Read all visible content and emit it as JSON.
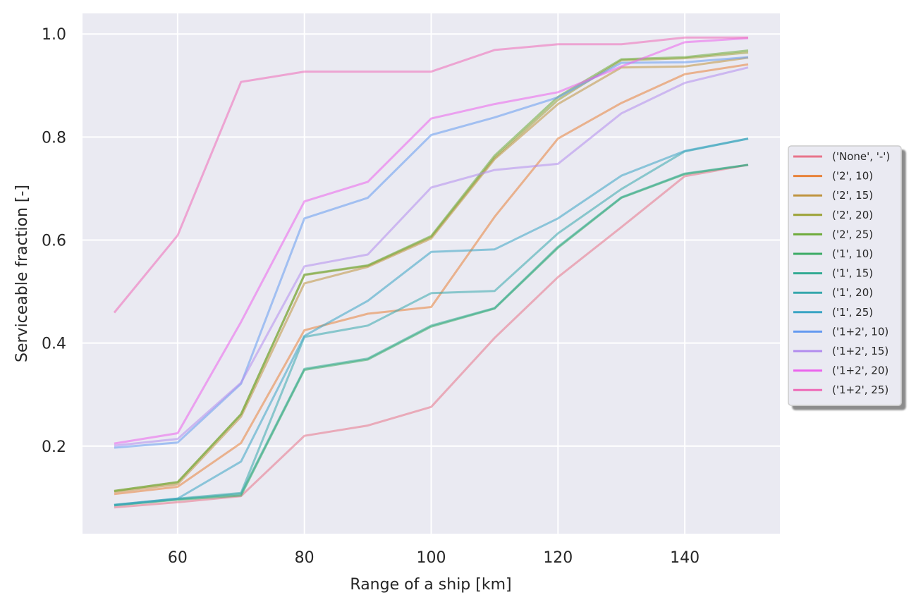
{
  "chart_data": {
    "type": "line",
    "title": "",
    "xlabel": "Range of a ship [km]",
    "ylabel": "Serviceable fraction [-]",
    "xlim": [
      45,
      155
    ],
    "ylim": [
      0.03,
      1.04
    ],
    "xticks": [
      60,
      80,
      100,
      120,
      140
    ],
    "yticks": [
      0.2,
      0.4,
      0.6,
      0.8,
      1.0
    ],
    "x": [
      50,
      60,
      70,
      80,
      90,
      100,
      110,
      120,
      130,
      140,
      150
    ],
    "grid": true,
    "legend_position": "right",
    "series": [
      {
        "name": "('None', '-')",
        "color": "#e8748b",
        "values": [
          0.081,
          0.091,
          0.103,
          0.22,
          0.24,
          0.276,
          0.41,
          0.528,
          0.625,
          0.724,
          0.746
        ]
      },
      {
        "name": "('2', 10)",
        "color": "#e8823a",
        "values": [
          0.107,
          0.121,
          0.206,
          0.425,
          0.457,
          0.47,
          0.645,
          0.797,
          0.866,
          0.922,
          0.941
        ]
      },
      {
        "name": "('2', 15)",
        "color": "#bf9440",
        "values": [
          0.111,
          0.126,
          0.257,
          0.516,
          0.548,
          0.603,
          0.757,
          0.864,
          0.935,
          0.937,
          0.954
        ]
      },
      {
        "name": "('2', 20)",
        "color": "#9ba134",
        "values": [
          0.113,
          0.13,
          0.262,
          0.532,
          0.55,
          0.606,
          0.76,
          0.872,
          0.949,
          0.953,
          0.964
        ]
      },
      {
        "name": "('2', 25)",
        "color": "#6eab3a",
        "values": [
          0.113,
          0.13,
          0.262,
          0.533,
          0.551,
          0.608,
          0.764,
          0.878,
          0.951,
          0.955,
          0.968
        ]
      },
      {
        "name": "('1', 10)",
        "color": "#3bab65",
        "values": [
          0.085,
          0.096,
          0.104,
          0.348,
          0.368,
          0.432,
          0.467,
          0.585,
          0.682,
          0.728,
          0.746
        ]
      },
      {
        "name": "('1', 15)",
        "color": "#34ab94",
        "values": [
          0.085,
          0.097,
          0.107,
          0.35,
          0.37,
          0.434,
          0.468,
          0.587,
          0.683,
          0.729,
          0.746
        ]
      },
      {
        "name": "('1', 20)",
        "color": "#37a7ad",
        "values": [
          0.086,
          0.098,
          0.109,
          0.412,
          0.434,
          0.497,
          0.501,
          0.613,
          0.699,
          0.772,
          0.797
        ]
      },
      {
        "name": "('1', 25)",
        "color": "#3aa4c4",
        "values": [
          0.086,
          0.098,
          0.17,
          0.414,
          0.482,
          0.577,
          0.582,
          0.642,
          0.725,
          0.773,
          0.797
        ]
      },
      {
        "name": "('1+2', 10)",
        "color": "#649af0",
        "values": [
          0.197,
          0.207,
          0.321,
          0.642,
          0.682,
          0.804,
          0.838,
          0.877,
          0.944,
          0.945,
          0.955
        ]
      },
      {
        "name": "('1+2', 15)",
        "color": "#b28cee",
        "values": [
          0.201,
          0.214,
          0.323,
          0.549,
          0.572,
          0.702,
          0.736,
          0.748,
          0.846,
          0.905,
          0.935
        ]
      },
      {
        "name": "('1+2', 20)",
        "color": "#eb63ed",
        "values": [
          0.205,
          0.225,
          0.441,
          0.675,
          0.713,
          0.836,
          0.864,
          0.887,
          0.937,
          0.984,
          0.992
        ]
      },
      {
        "name": "('1+2', 25)",
        "color": "#ee6ab8",
        "values": [
          0.459,
          0.609,
          0.907,
          0.927,
          0.927,
          0.927,
          0.969,
          0.98,
          0.98,
          0.993,
          0.993
        ]
      }
    ]
  }
}
